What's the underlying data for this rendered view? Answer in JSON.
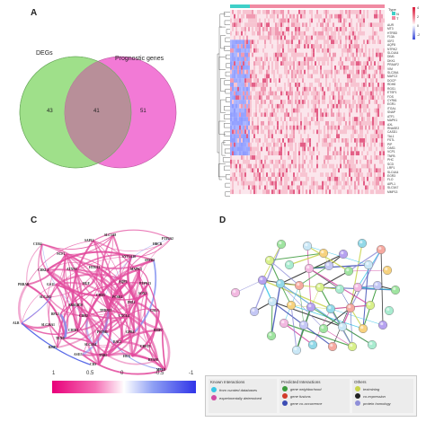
{
  "panels": {
    "a": "A",
    "b": "B",
    "c": "C",
    "d": "D"
  },
  "venn": {
    "left_label": "DEGs",
    "right_label": "Prognostic genes",
    "left_only": "43",
    "overlap": "41",
    "right_only": "51",
    "left_color": "#9fe08a",
    "right_color": "#f27ad6",
    "overlap_color": "#b88f99"
  },
  "heatmap": {
    "legend_title": "Type",
    "legend_items": [
      "N",
      "T"
    ],
    "scale_ticks": [
      "4",
      "2",
      "0",
      "-2"
    ],
    "genes": [
      "AUR",
      "MT3",
      "HTR5D",
      "F13A",
      "IGF2",
      "AQP8",
      "NTRK2",
      "SLC4A4",
      "DIM1",
      "DKK1",
      "PRAAF2",
      "VIM",
      "SLC26A",
      "MAFC2",
      "DOCP",
      "RDH8",
      "RGS1",
      "ETSP1",
      "FOS",
      "CYR61",
      "EGR1",
      "ITGAL",
      "SNAP",
      "ATF1",
      "MAPK1",
      "AXL",
      "RNASE2",
      "CASD1",
      "TAL1",
      "FSTL",
      "PIP",
      "OAS1",
      "VCP1",
      "TNFB",
      "PHC",
      "SCD",
      "LRP1",
      "SLC4A4",
      "EGR3",
      "FLO",
      "AIPL1",
      "SLC3A7",
      "MMP13"
    ],
    "n_color": "#3fd0c8",
    "t_color": "#f08aa2"
  },
  "network_c": {
    "nodes": [
      "SLC5A8",
      "SAP12",
      "NCF1",
      "CUR4",
      "SYT1A10",
      "SNTB2",
      "HBCR",
      "PTP4A2",
      "ATXN3",
      "HTRA1",
      "CDKL1",
      "GA11",
      "HGF",
      "AQP3",
      "MAPK3",
      "PTPN13",
      "CHD5",
      "PCSK2",
      "PRRAB",
      "SLC4A5",
      "AKR1B10",
      "TPDN13",
      "PR12",
      "GAL3",
      "SOX2",
      "BPL2",
      "CDH2",
      "CXCL4",
      "ALB",
      "SLC26A1",
      "CDIH1",
      "PSTM1",
      "GPR4",
      "BMP7",
      "TENB",
      "SLC4A4",
      "RAC1",
      "CHST3",
      "ASI13",
      "TNBI",
      "HOX",
      "RYAN1",
      "BMP1",
      "CDS",
      "MPL8"
    ],
    "scale_ticks": [
      "1",
      "0.5",
      "0",
      "-0.5",
      "-1"
    ]
  },
  "network_d": {
    "legend": {
      "known_title": "Known Interactions",
      "known_items": [
        "from curated databases",
        "experimentally determined"
      ],
      "predicted_title": "Predicted Interactions",
      "predicted_items": [
        "gene neighborhood",
        "gene fusions",
        "gene co-occurrence"
      ],
      "others_title": "Others",
      "others_items": [
        "textmining",
        "co-expression",
        "protein homology"
      ],
      "colors": {
        "curated": "#37c6e6",
        "experimental": "#d14aa3",
        "neighborhood": "#3c9a3c",
        "fusions": "#d23a2a",
        "cooccurrence": "#3b4bb3",
        "textmining": "#c8d44a",
        "coexpression": "#222222",
        "homology": "#8f8fd8"
      }
    }
  }
}
